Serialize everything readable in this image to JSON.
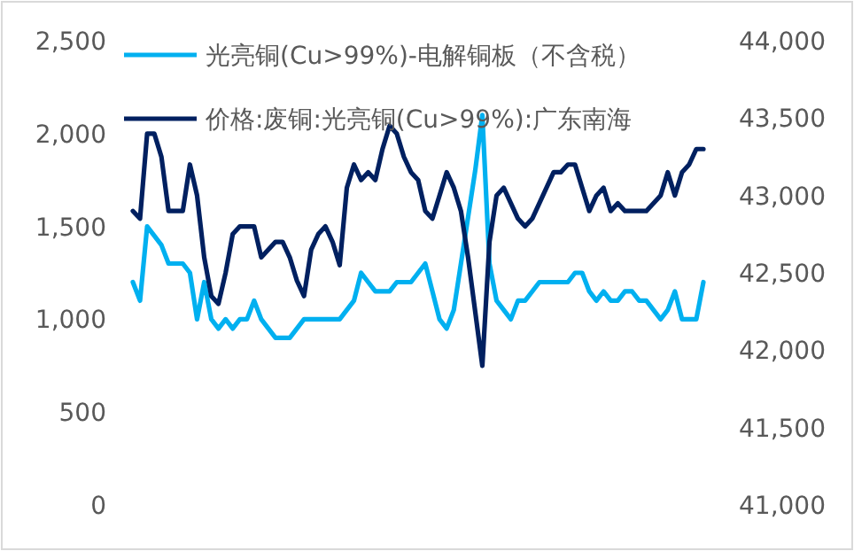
{
  "chart_data": {
    "type": "line",
    "legend": "top",
    "categories": [
      null,
      null,
      null,
      null,
      null,
      null,
      null,
      null,
      null,
      null,
      null,
      null,
      null,
      null,
      null,
      null,
      null,
      null,
      null,
      null,
      null,
      null,
      null,
      null,
      null,
      null,
      null,
      null,
      null,
      null,
      null,
      null,
      null,
      null,
      null,
      null,
      null,
      null,
      null,
      null,
      null,
      null,
      null,
      null,
      null,
      null,
      null,
      null,
      null,
      null,
      null,
      null,
      null,
      null,
      null,
      null,
      null,
      null,
      null,
      null,
      null,
      null,
      null,
      null,
      null,
      null,
      null,
      null,
      null,
      null,
      null,
      null,
      null,
      null,
      null,
      null,
      null,
      null,
      null,
      null,
      null
    ],
    "series": [
      {
        "name": "光亮铜(Cu>99%)-电解铜板（不含税）",
        "color": "#00b0f0",
        "values": [
          1200,
          1100,
          1500,
          1450,
          1400,
          1300,
          1300,
          1300,
          1250,
          1000,
          1200,
          1000,
          950,
          1000,
          950,
          1000,
          1000,
          1100,
          1000,
          950,
          900,
          900,
          900,
          950,
          1000,
          1000,
          1000,
          1000,
          1000,
          1000,
          1050,
          1100,
          1250,
          1200,
          1150,
          1150,
          1150,
          1200,
          1200,
          1200,
          1250,
          1300,
          1150,
          1000,
          950,
          1050,
          1300,
          1550,
          1800,
          2100,
          1300,
          1100,
          1050,
          1000,
          1100,
          1100,
          1150,
          1200,
          1200,
          1200,
          1200,
          1200,
          1250,
          1250,
          1150,
          1100,
          1150,
          1100,
          1100,
          1150,
          1150,
          1100,
          1100,
          1050,
          1000,
          1050,
          1150,
          1000,
          1000,
          1000,
          1200
        ]
      },
      {
        "name": "价格:废铜:光亮铜(Cu>99%):广东南海",
        "color": "#002060",
        "axis": "y2",
        "values": [
          42900,
          42850,
          43400,
          43400,
          43250,
          42900,
          42900,
          42900,
          43200,
          43000,
          42600,
          42350,
          42300,
          42500,
          42750,
          42800,
          42800,
          42800,
          42600,
          42650,
          42700,
          42700,
          42600,
          42450,
          42350,
          42650,
          42750,
          42800,
          42700,
          42550,
          43050,
          43200,
          43100,
          43150,
          43100,
          43300,
          43450,
          43400,
          43250,
          43150,
          43100,
          42900,
          42850,
          43000,
          43150,
          43050,
          42900,
          42600,
          42250,
          41900,
          42700,
          43000,
          43050,
          42950,
          42850,
          42800,
          42850,
          42950,
          43050,
          43150,
          43150,
          43200,
          43200,
          43050,
          42900,
          43000,
          43050,
          42900,
          42950,
          42900,
          42900,
          42900,
          42900,
          42950,
          43000,
          43150,
          43000,
          43150,
          43200,
          43300,
          43300
        ]
      }
    ],
    "ylim": [
      0,
      2500
    ],
    "yticks": [
      0,
      500,
      {
        "value": 1000,
        "label": "1,000"
      },
      {
        "value": 1500,
        "label": "1,500"
      },
      {
        "value": 2000,
        "label": "2,000"
      },
      {
        "value": 2500,
        "label": "2,500"
      }
    ],
    "y2lim": [
      41000,
      44000
    ],
    "y2ticks": [
      {
        "value": 41000,
        "label": "41,000"
      },
      {
        "value": 41500,
        "label": "41,500"
      },
      {
        "value": 42000,
        "label": "42,000"
      },
      {
        "value": 42500,
        "label": "42,500"
      },
      {
        "value": 43000,
        "label": "43,000"
      },
      {
        "value": 43500,
        "label": "43,500"
      },
      {
        "value": 44000,
        "label": "44,000"
      }
    ]
  }
}
